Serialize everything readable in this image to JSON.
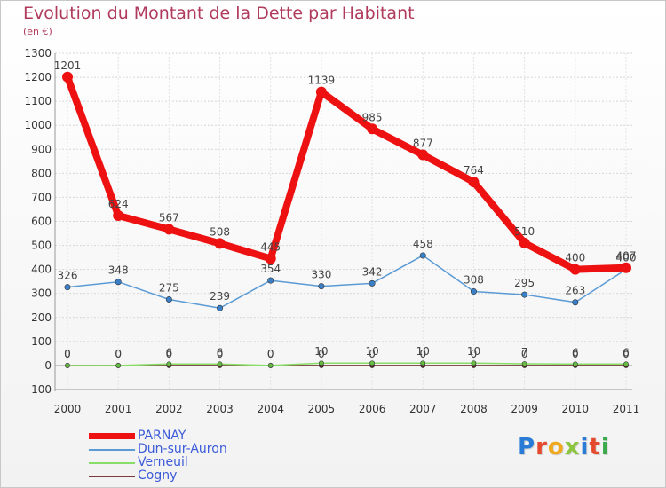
{
  "header": {
    "title": "Evolution du Montant de la Dette par Habitant",
    "subtitle": "(en €)"
  },
  "brand": {
    "text": "Proxiti",
    "letter_colors": [
      "#2a7bd6",
      "#e64a2e",
      "#f0a81c",
      "#8cc63f",
      "#2a7bd6",
      "#e64a2e",
      "#3aaa4a"
    ]
  },
  "chart_data": {
    "type": "line",
    "title": "Evolution du Montant de la Dette par Habitant",
    "subtitle": "(en €)",
    "xlabel": "",
    "ylabel": "",
    "x": [
      "2000",
      "2001",
      "2002",
      "2003",
      "2004",
      "2005",
      "2006",
      "2007",
      "2008",
      "2009",
      "2010",
      "2011"
    ],
    "ylim": [
      -100,
      1300
    ],
    "yticks": [
      -100,
      0,
      100,
      200,
      300,
      400,
      500,
      600,
      700,
      800,
      900,
      1000,
      1100,
      1200,
      1300
    ],
    "grid": true,
    "legend_position": "bottom-left",
    "series": [
      {
        "name": "PARNAY",
        "color": "#ee1111",
        "values": [
          1201,
          624,
          567,
          508,
          445,
          1139,
          985,
          877,
          764,
          510,
          400,
          407
        ]
      },
      {
        "name": "Dun-sur-Auron",
        "color": "#5b9bd5",
        "values": [
          326,
          348,
          275,
          239,
          354,
          330,
          342,
          458,
          308,
          295,
          263,
          400
        ]
      },
      {
        "name": "Verneuil",
        "color": "#88dd66",
        "values": [
          0,
          0,
          6,
          6,
          0,
          10,
          10,
          10,
          10,
          7,
          6,
          6
        ]
      },
      {
        "name": "Cogny",
        "color": "#7a3b3b",
        "values": [
          0,
          0,
          0,
          0,
          0,
          0,
          0,
          0,
          0,
          0,
          0,
          0
        ]
      }
    ]
  }
}
